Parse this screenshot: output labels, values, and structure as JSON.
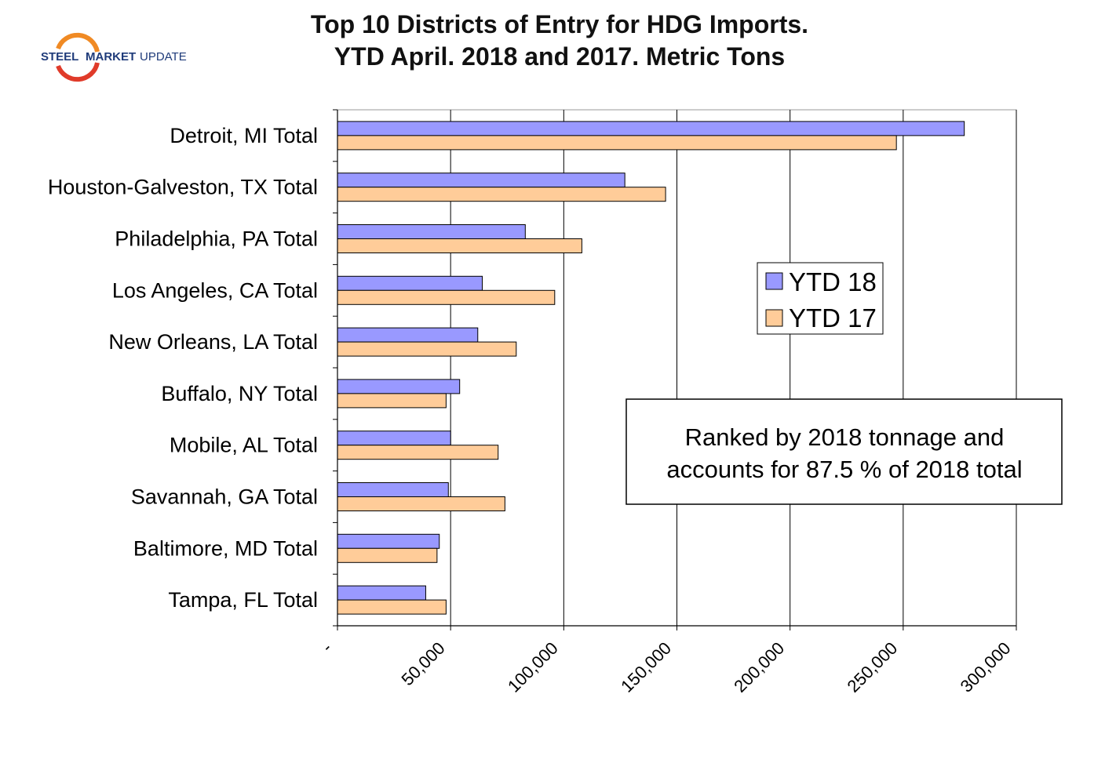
{
  "logo": {
    "word1": "STEEL",
    "word2": "MARKET",
    "word3": "UPDATE"
  },
  "chart_data": {
    "type": "bar",
    "orientation": "horizontal",
    "title": [
      "Top 10 Districts of Entry for HDG Imports.",
      "YTD April. 2018 and 2017. Metric Tons"
    ],
    "categories": [
      "Detroit, MI Total",
      "Houston-Galveston, TX Total",
      "Philadelphia, PA Total",
      "Los Angeles, CA Total",
      "New Orleans, LA Total",
      "Buffalo, NY Total",
      "Mobile, AL Total",
      "Savannah, GA Total",
      "Baltimore, MD Total",
      "Tampa, FL Total"
    ],
    "series": [
      {
        "name": "YTD 18",
        "color": "#9999ff",
        "values": [
          277000,
          127000,
          83000,
          64000,
          62000,
          54000,
          50000,
          49000,
          45000,
          39000
        ]
      },
      {
        "name": "YTD 17",
        "color": "#ffcc99",
        "values": [
          247000,
          145000,
          108000,
          96000,
          79000,
          48000,
          71000,
          74000,
          44000,
          48000
        ]
      }
    ],
    "xlim": [
      0,
      300000
    ],
    "xticks": [
      0,
      50000,
      100000,
      150000,
      200000,
      250000,
      300000
    ],
    "xtick_labels": [
      "-",
      "50,000",
      "100,000",
      "150,000",
      "200,000",
      "250,000",
      "300,000"
    ],
    "grid": true,
    "legend": "right-middle",
    "annotation": [
      "Ranked by 2018 tonnage and",
      "accounts for 87.5 % of 2018 total"
    ]
  }
}
